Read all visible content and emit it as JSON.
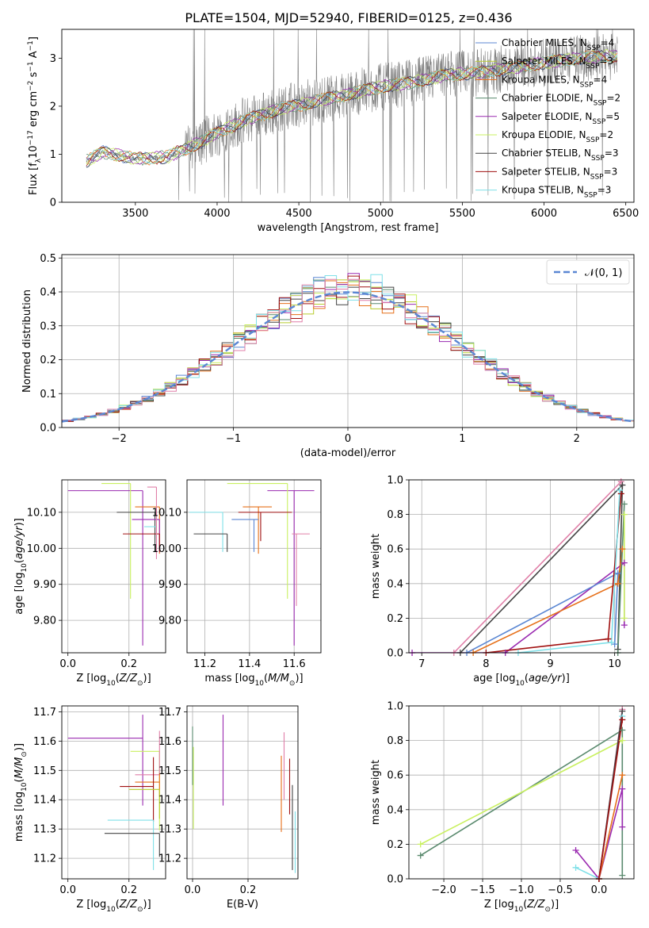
{
  "figure_title": "PLATE=1504, MJD=52940, FIBERID=0125, z=0.436",
  "colors": {
    "chabrier_miles": "#5b87d3",
    "salpeter_miles": "#b8cc2e",
    "kroupa_miles": "#e6701a",
    "chabrier_elodie": "#5a8a6e",
    "salpeter_elodie": "#9a2ab0",
    "kroupa_elodie": "#c9f060",
    "chabrier_stelib": "#444444",
    "salpeter_stelib": "#a01010",
    "kroupa_stelib": "#7fe0e8",
    "pink": "#e07fa8",
    "gray": "#808080",
    "normal": "#5b87d3"
  },
  "chart_data": [
    {
      "id": "spectrum",
      "type": "line",
      "xlabel": "wavelength [Angstrom, rest frame]",
      "ylabel": "Flux [f_λ 10^-17 erg cm^-2 s^-1 A^-1]",
      "xlim": [
        3050,
        6550
      ],
      "ylim": [
        0,
        3.6
      ],
      "xticks": [
        3500,
        4000,
        4500,
        5000,
        5500,
        6000,
        6500
      ],
      "yticks": [
        0,
        1,
        2,
        3
      ],
      "legend_placement": "top-right",
      "legend": [
        {
          "text": "Chabrier MILES, N",
          "sub": "SSP",
          "tail": "=4",
          "color_key": "chabrier_miles"
        },
        {
          "text": "Salpeter MILES, N",
          "sub": "SSP",
          "tail": "=3",
          "color_key": "salpeter_miles"
        },
        {
          "text": "Kroupa MILES, N",
          "sub": "SSP",
          "tail": "=4",
          "color_key": "kroupa_miles"
        },
        {
          "text": "Chabrier ELODIE, N",
          "sub": "SSP",
          "tail": "=2",
          "color_key": "chabrier_elodie"
        },
        {
          "text": "Salpeter ELODIE, N",
          "sub": "SSP",
          "tail": "=5",
          "color_key": "salpeter_elodie"
        },
        {
          "text": "Kroupa ELODIE, N",
          "sub": "SSP",
          "tail": "=2",
          "color_key": "kroupa_elodie"
        },
        {
          "text": "Chabrier STELIB, N",
          "sub": "SSP",
          "tail": "=3",
          "color_key": "chabrier_stelib"
        },
        {
          "text": "Salpeter STELIB, N",
          "sub": "SSP",
          "tail": "=3",
          "color_key": "salpeter_stelib"
        },
        {
          "text": "Kroupa STELIB, N",
          "sub": "SSP",
          "tail": "=3",
          "color_key": "kroupa_stelib"
        }
      ],
      "data_range_x": [
        3200,
        6450
      ],
      "continuum": [
        [
          3200,
          0.85
        ],
        [
          3300,
          1.05
        ],
        [
          3400,
          0.98
        ],
        [
          3500,
          0.9
        ],
        [
          3600,
          0.92
        ],
        [
          3700,
          0.95
        ],
        [
          3800,
          1.1
        ],
        [
          3900,
          1.25
        ],
        [
          4000,
          1.45
        ],
        [
          4200,
          1.75
        ],
        [
          4400,
          1.95
        ],
        [
          4600,
          2.1
        ],
        [
          4800,
          2.25
        ],
        [
          5000,
          2.4
        ],
        [
          5200,
          2.5
        ],
        [
          5400,
          2.65
        ],
        [
          5600,
          2.7
        ],
        [
          5800,
          2.8
        ],
        [
          6000,
          2.9
        ],
        [
          6200,
          3.0
        ],
        [
          6450,
          3.05
        ]
      ]
    },
    {
      "id": "residuals",
      "type": "line",
      "xlabel": "(data-model)/error",
      "ylabel": "Normed distribution",
      "xlim": [
        -2.5,
        2.5
      ],
      "ylim": [
        0,
        0.51
      ],
      "xticks": [
        -2,
        -1,
        0,
        1,
        2
      ],
      "yticks": [
        0.0,
        0.1,
        0.2,
        0.3,
        0.4,
        0.5
      ],
      "grid": true,
      "legend_placement": "top-right",
      "legend": [
        {
          "text": "𝒩(0, 1)",
          "color_key": "normal"
        }
      ],
      "normal_curve": {
        "mean": 0,
        "sigma": 1
      }
    },
    {
      "id": "age_vs_Z",
      "type": "scatter",
      "xlabel": "Z [log10(Z/Z⊙)]",
      "ylabel": "age  [log10(age/yr)]",
      "xlim": [
        -0.02,
        0.32
      ],
      "ylim": [
        9.71,
        10.19
      ],
      "xticks": [
        0.0,
        0.2
      ],
      "yticks": [
        9.8,
        9.9,
        10.0,
        10.1
      ],
      "grid": true,
      "points": [
        {
          "x": 0.245,
          "y": 10.16,
          "xerr": [
            0.245,
            0.0
          ],
          "yerr": [
            0.43,
            0.0
          ],
          "c": "salpeter_elodie"
        },
        {
          "x": 0.205,
          "y": 10.18,
          "xerr": [
            0.095,
            0.0
          ],
          "yerr": [
            0.32,
            0.0
          ],
          "c": "kroupa_elodie"
        },
        {
          "x": 0.3,
          "y": 10.115,
          "xerr": [
            0.08,
            0.0
          ],
          "yerr": [
            0.13,
            0.0
          ],
          "c": "kroupa_miles"
        },
        {
          "x": 0.285,
          "y": 10.1,
          "xerr": [
            0.125,
            0.0
          ],
          "yerr": [
            0.11,
            0.0
          ],
          "c": "chabrier_stelib"
        },
        {
          "x": 0.3,
          "y": 10.08,
          "xerr": [
            0.09,
            0.0
          ],
          "yerr": [
            0.09,
            0.0
          ],
          "c": "salpeter_elodie"
        },
        {
          "x": 0.29,
          "y": 10.06,
          "xerr": [
            0.04,
            0.0
          ],
          "yerr": [
            0.06,
            0.0
          ],
          "c": "kroupa_stelib"
        },
        {
          "x": 0.3,
          "y": 10.04,
          "xerr": [
            0.12,
            0.0
          ],
          "yerr": [
            0.05,
            0.0
          ],
          "c": "salpeter_stelib"
        },
        {
          "x": 0.29,
          "y": 10.17,
          "xerr": [
            0.03,
            0.0
          ],
          "yerr": [
            0.2,
            0.0
          ],
          "c": "pink"
        }
      ]
    },
    {
      "id": "age_vs_mass",
      "type": "scatter",
      "xlabel": "mass [log10(M/M⊙)]",
      "ylabel": "",
      "xlim": [
        11.12,
        11.72
      ],
      "ylim": [
        9.71,
        10.19
      ],
      "xticks": [
        11.2,
        11.4,
        11.6
      ],
      "yticks": [
        9.8,
        9.9,
        10.0,
        10.1
      ],
      "grid": true,
      "points": [
        {
          "x": 11.6,
          "y": 10.16,
          "xerr": [
            0.12,
            0.09
          ],
          "yerr": [
            0.43,
            0.0
          ],
          "c": "salpeter_elodie"
        },
        {
          "x": 11.57,
          "y": 10.18,
          "xerr": [
            0.27,
            0.0
          ],
          "yerr": [
            0.32,
            0.0
          ],
          "c": "kroupa_elodie"
        },
        {
          "x": 11.44,
          "y": 10.115,
          "xerr": [
            0.07,
            0.06
          ],
          "yerr": [
            0.13,
            0.0
          ],
          "c": "kroupa_miles"
        },
        {
          "x": 11.28,
          "y": 10.1,
          "xerr": [
            0.15,
            0.0
          ],
          "yerr": [
            0.11,
            0.0
          ],
          "c": "kroupa_stelib"
        },
        {
          "x": 11.42,
          "y": 10.08,
          "xerr": [
            0.1,
            0.02
          ],
          "yerr": [
            0.09,
            0.0
          ],
          "c": "chabrier_miles"
        },
        {
          "x": 11.45,
          "y": 10.1,
          "xerr": [
            0.1,
            0.14
          ],
          "yerr": [
            0.08,
            0.0
          ],
          "c": "salpeter_stelib"
        },
        {
          "x": 11.3,
          "y": 10.04,
          "xerr": [
            0.15,
            0.0
          ],
          "yerr": [
            0.05,
            0.0
          ],
          "c": "chabrier_stelib"
        },
        {
          "x": 11.61,
          "y": 10.04,
          "xerr": [
            0.02,
            0.06
          ],
          "yerr": [
            0.2,
            0.0
          ],
          "c": "pink"
        }
      ]
    },
    {
      "id": "massweight_vs_age",
      "type": "line",
      "xlabel": "age  [log10(age/yr)]",
      "ylabel": "mass weight",
      "xlim": [
        6.8,
        10.3
      ],
      "ylim": [
        0,
        1.0
      ],
      "xticks": [
        7,
        8,
        9,
        10
      ],
      "yticks": [
        0.0,
        0.2,
        0.4,
        0.6,
        0.8,
        1.0
      ],
      "grid": true,
      "series": [
        {
          "c": "pink",
          "points": [
            [
              7.5,
              0.0
            ],
            [
              10.1,
              0.99
            ]
          ]
        },
        {
          "c": "salpeter_elodie",
          "points": [
            [
              6.85,
              0.0
            ],
            [
              8.3,
              0.0
            ],
            [
              10.15,
              0.52
            ],
            [
              10.15,
              0.16
            ]
          ]
        },
        {
          "c": "chabrier_stelib",
          "points": [
            [
              7.6,
              0.0
            ],
            [
              10.12,
              0.97
            ],
            [
              10.05,
              0.02
            ]
          ]
        },
        {
          "c": "chabrier_miles",
          "points": [
            [
              7.7,
              0.0
            ],
            [
              10.05,
              0.46
            ],
            [
              10.0,
              0.05
            ]
          ]
        },
        {
          "c": "kroupa_miles",
          "points": [
            [
              7.8,
              0.0
            ],
            [
              10.05,
              0.4
            ],
            [
              10.12,
              0.6
            ]
          ]
        },
        {
          "c": "salpeter_stelib",
          "points": [
            [
              8.0,
              0.0
            ],
            [
              9.9,
              0.08
            ],
            [
              10.1,
              0.92
            ]
          ]
        },
        {
          "c": "kroupa_stelib",
          "points": [
            [
              8.5,
              0.0
            ],
            [
              9.95,
              0.06
            ],
            [
              10.08,
              0.94
            ]
          ]
        },
        {
          "c": "chabrier_elodie",
          "points": [
            [
              10.05,
              0.0
            ],
            [
              10.15,
              0.86
            ]
          ]
        },
        {
          "c": "kroupa_elodie",
          "points": [
            [
              10.15,
              0.2
            ],
            [
              10.15,
              0.8
            ]
          ]
        }
      ]
    },
    {
      "id": "mass_vs_Z",
      "type": "scatter",
      "xlabel": "Z [log10(Z/Z⊙)]",
      "ylabel": "mass [log10(M/M⊙)]",
      "xlim": [
        -0.02,
        0.32
      ],
      "ylim": [
        11.13,
        11.72
      ],
      "xticks": [
        0.0,
        0.2
      ],
      "yticks": [
        11.2,
        11.3,
        11.4,
        11.5,
        11.6,
        11.7
      ],
      "grid": true,
      "points": [
        {
          "x": 0.245,
          "y": 11.61,
          "xerr": [
            0.245,
            0.0
          ],
          "yerr": [
            0.23,
            0.08
          ],
          "c": "salpeter_elodie"
        },
        {
          "x": 0.3,
          "y": 11.565,
          "xerr": [
            0.095,
            0.0
          ],
          "yerr": [
            0.27,
            0.0
          ],
          "c": "kroupa_elodie"
        },
        {
          "x": 0.3,
          "y": 11.485,
          "xerr": [
            0.08,
            0.0
          ],
          "yerr": [
            0.0,
            0.15
          ],
          "c": "pink"
        },
        {
          "x": 0.3,
          "y": 11.46,
          "xerr": [
            0.08,
            0.0
          ],
          "yerr": [
            0.05,
            0.03
          ],
          "c": "kroupa_miles"
        },
        {
          "x": 0.28,
          "y": 11.445,
          "xerr": [
            0.11,
            0.0
          ],
          "yerr": [
            0.12,
            0.1
          ],
          "c": "salpeter_stelib"
        },
        {
          "x": 0.3,
          "y": 11.435,
          "xerr": [
            0.1,
            0.0
          ],
          "yerr": [
            0.1,
            0.0
          ],
          "c": "salpeter_miles"
        },
        {
          "x": 0.28,
          "y": 11.33,
          "xerr": [
            0.15,
            0.0
          ],
          "yerr": [
            0.17,
            0.0
          ],
          "c": "kroupa_stelib"
        },
        {
          "x": 0.3,
          "y": 11.285,
          "xerr": [
            0.18,
            0.0
          ],
          "yerr": [
            0.08,
            0.0
          ],
          "c": "chabrier_stelib"
        }
      ]
    },
    {
      "id": "mass_vs_ebv",
      "type": "scatter",
      "xlabel": "E(B-V)",
      "ylabel": "",
      "xlim": [
        -0.02,
        0.38
      ],
      "ylim": [
        11.13,
        11.72
      ],
      "xticks": [
        0.0,
        0.2
      ],
      "yticks": [
        11.2,
        11.3,
        11.4,
        11.5,
        11.6,
        11.7
      ],
      "grid": true,
      "points": [
        {
          "x": 0.0,
          "y": 11.55,
          "xerr": [
            0,
            0
          ],
          "yerr": [
            0.1,
            0.1
          ],
          "c": "chabrier_elodie"
        },
        {
          "x": 0.003,
          "y": 11.44,
          "xerr": [
            0,
            0
          ],
          "yerr": [
            0.14,
            0.14
          ],
          "c": "kroupa_elodie"
        },
        {
          "x": 0.11,
          "y": 11.54,
          "xerr": [
            0,
            0
          ],
          "yerr": [
            0.16,
            0.15
          ],
          "c": "salpeter_elodie"
        },
        {
          "x": 0.32,
          "y": 11.45,
          "xerr": [
            0,
            0
          ],
          "yerr": [
            0.16,
            0.1
          ],
          "c": "kroupa_miles"
        },
        {
          "x": 0.33,
          "y": 11.48,
          "xerr": [
            0,
            0
          ],
          "yerr": [
            0.08,
            0.15
          ],
          "c": "pink"
        },
        {
          "x": 0.35,
          "y": 11.45,
          "xerr": [
            0,
            0
          ],
          "yerr": [
            0.1,
            0.09
          ],
          "c": "salpeter_stelib"
        },
        {
          "x": 0.36,
          "y": 11.36,
          "xerr": [
            0,
            0
          ],
          "yerr": [
            0.2,
            0.09
          ],
          "c": "chabrier_stelib"
        },
        {
          "x": 0.37,
          "y": 11.28,
          "xerr": [
            0,
            0
          ],
          "yerr": [
            0.13,
            0.08
          ],
          "c": "kroupa_stelib"
        }
      ]
    },
    {
      "id": "massweight_vs_Z",
      "type": "line",
      "xlabel": "Z [log10(Z/Z⊙)]",
      "ylabel": "mass weight",
      "xlim": [
        -2.45,
        0.45
      ],
      "ylim": [
        0,
        1.0
      ],
      "xticks": [
        -2.0,
        -1.5,
        -1.0,
        -0.5,
        0.0
      ],
      "yticks": [
        0.0,
        0.2,
        0.4,
        0.6,
        0.8,
        1.0
      ],
      "grid": true,
      "series": [
        {
          "c": "chabrier_elodie",
          "points": [
            [
              -2.3,
              0.135
            ],
            [
              0.3,
              0.86
            ],
            [
              0.3,
              0.02
            ]
          ]
        },
        {
          "c": "kroupa_elodie",
          "points": [
            [
              -2.3,
              0.2
            ],
            [
              0.3,
              0.8
            ]
          ]
        },
        {
          "c": "salpeter_elodie",
          "points": [
            [
              -0.3,
              0.165
            ],
            [
              0.0,
              0.0
            ],
            [
              0.3,
              0.52
            ],
            [
              0.3,
              0.3
            ]
          ]
        },
        {
          "c": "kroupa_stelib",
          "points": [
            [
              -0.3,
              0.065
            ],
            [
              0.0,
              0.0
            ],
            [
              0.3,
              0.94
            ]
          ]
        },
        {
          "c": "pink",
          "points": [
            [
              0.0,
              0.0
            ],
            [
              0.3,
              0.98
            ]
          ]
        },
        {
          "c": "chabrier_stelib",
          "points": [
            [
              0.0,
              0.0
            ],
            [
              0.3,
              0.97
            ]
          ]
        },
        {
          "c": "kroupa_miles",
          "points": [
            [
              0.0,
              0.0
            ],
            [
              0.3,
              0.6
            ]
          ]
        },
        {
          "c": "salpeter_stelib",
          "points": [
            [
              0.0,
              0.0
            ],
            [
              0.3,
              0.92
            ]
          ]
        }
      ]
    }
  ]
}
